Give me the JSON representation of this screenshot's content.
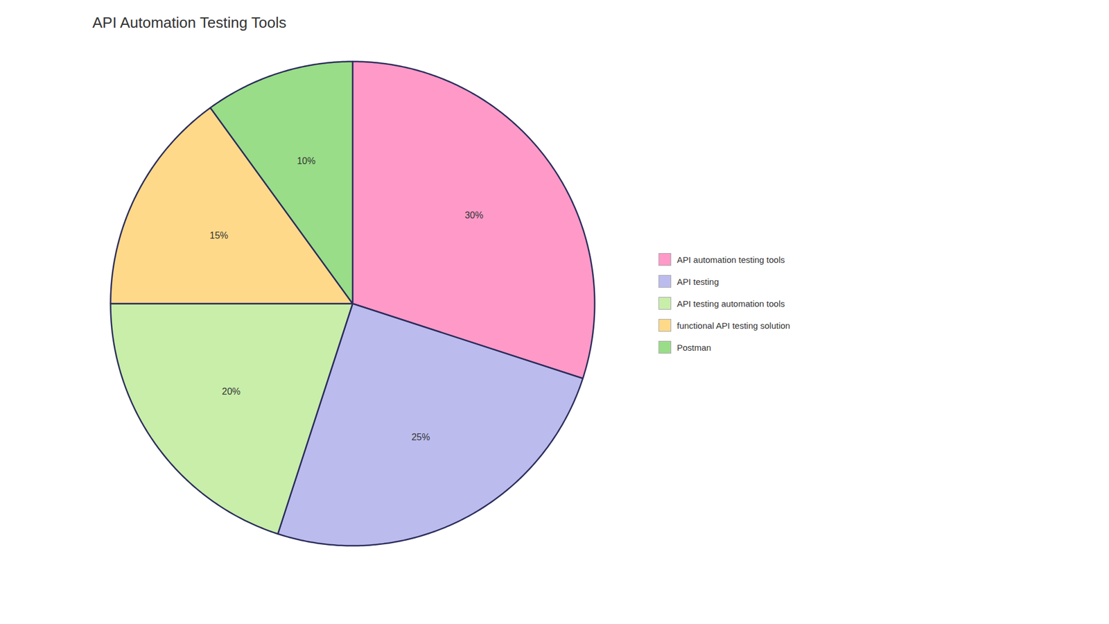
{
  "chart_data": {
    "type": "pie",
    "title": "API Automation Testing Tools",
    "categories": [
      "API automation testing tools",
      "API testing",
      "API testing automation tools",
      "functional API testing solution",
      "Postman"
    ],
    "values": [
      30,
      25,
      20,
      15,
      10
    ],
    "value_labels": [
      "30%",
      "25%",
      "20%",
      "15%",
      "10%"
    ],
    "colors": [
      "#FF99C8",
      "#BBBBEE",
      "#C8EEAA",
      "#FFD98A",
      "#99DD88"
    ],
    "data_labels": true,
    "legend": "right"
  }
}
